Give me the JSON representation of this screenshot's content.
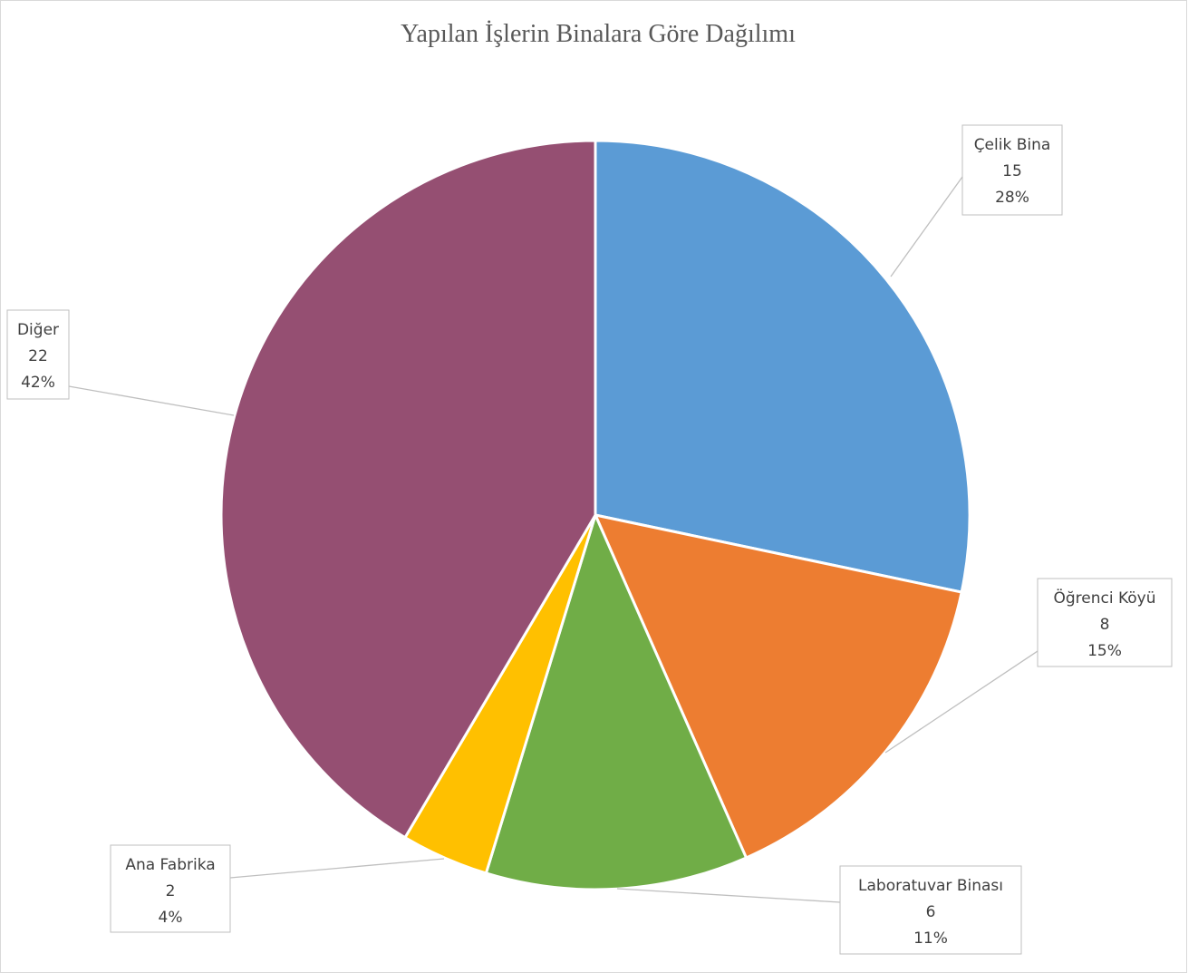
{
  "chart_data": {
    "type": "pie",
    "title": "Yapılan İşlerin Binalara Göre Dağılımı",
    "categories": [
      "Çelik Bina",
      "Öğrenci Köyü",
      "Laboratuvar Binası",
      "Ana Fabrika",
      "Diğer"
    ],
    "values": [
      15,
      8,
      6,
      2,
      22
    ],
    "percent_labels": [
      "28%",
      "15%",
      "11%",
      "4%",
      "42%"
    ],
    "colors": [
      "#5b9bd5",
      "#ed7d31",
      "#70ad47",
      "#ffc000",
      "#954f72"
    ],
    "legend": "none",
    "data_labels": "category, value, percent"
  }
}
